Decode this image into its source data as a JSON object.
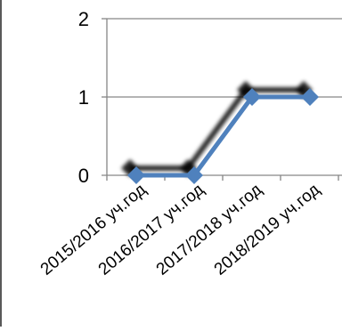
{
  "chart_data": {
    "type": "line",
    "categories": [
      "2015/2016 уч.год",
      "2016/2017 уч.год",
      "2017/2018 уч.год",
      "2018/2019 уч.год"
    ],
    "series": [
      {
        "values": [
          0,
          0,
          1,
          1
        ],
        "color": "#4f81bd",
        "marker": "diamond",
        "shadow": true
      }
    ],
    "ylim": [
      0,
      2
    ],
    "yticks": [
      0,
      1,
      2
    ],
    "grid": "horizontal",
    "legend": "none",
    "title": "",
    "xlabel": "",
    "ylabel": ""
  },
  "colors": {
    "line": "#4f81bd",
    "grid": "#868686",
    "axis": "#868686",
    "left_border": "#595959"
  }
}
